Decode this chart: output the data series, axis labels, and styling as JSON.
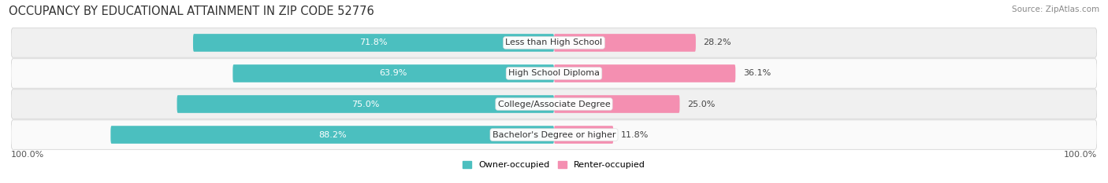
{
  "title": "OCCUPANCY BY EDUCATIONAL ATTAINMENT IN ZIP CODE 52776",
  "source": "Source: ZipAtlas.com",
  "categories": [
    "Less than High School",
    "High School Diploma",
    "College/Associate Degree",
    "Bachelor's Degree or higher"
  ],
  "owner_values": [
    71.8,
    63.9,
    75.0,
    88.2
  ],
  "renter_values": [
    28.2,
    36.1,
    25.0,
    11.8
  ],
  "owner_color": "#4BBFBF",
  "renter_color": "#F48FB1",
  "row_bg_color_light": "#F0F0F0",
  "row_bg_color_dark": "#E4E4E4",
  "label_color_owner": "#FFFFFF",
  "label_color_renter": "#555555",
  "title_fontsize": 10.5,
  "source_fontsize": 7.5,
  "bar_label_fontsize": 8,
  "category_fontsize": 8,
  "legend_fontsize": 8,
  "axis_label_fontsize": 8,
  "bar_height": 0.58,
  "left_axis_label": "100.0%",
  "right_axis_label": "100.0%",
  "legend_owner": "Owner-occupied",
  "legend_renter": "Renter-occupied"
}
